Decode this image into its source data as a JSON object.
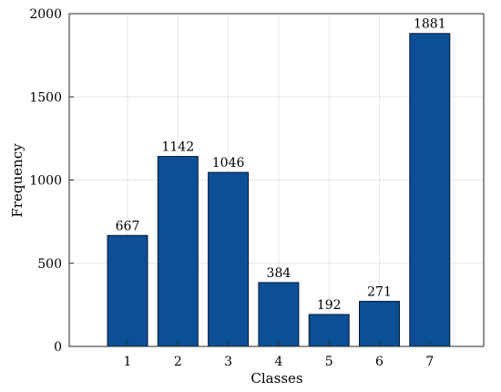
{
  "chart_data": {
    "type": "bar",
    "categories": [
      "1",
      "2",
      "3",
      "4",
      "5",
      "6",
      "7"
    ],
    "values": [
      667,
      1142,
      1046,
      384,
      192,
      271,
      1881
    ],
    "data_labels": [
      "667",
      "1142",
      "1046",
      "384",
      "192",
      "271",
      "1881"
    ],
    "title": "",
    "xlabel": "Classes",
    "ylabel": "Frequency",
    "ylim": [
      0,
      2000
    ],
    "yticks": [
      0,
      500,
      1000,
      1500,
      2000
    ],
    "ytick_labels": [
      "0",
      "500",
      "1000",
      "1500",
      "2000"
    ],
    "grid": true,
    "bar_color": "#0b4f96",
    "bar_edge_color": "#0a1a33",
    "grid_color": "#e6e6e6",
    "axis_color": "#262626"
  }
}
